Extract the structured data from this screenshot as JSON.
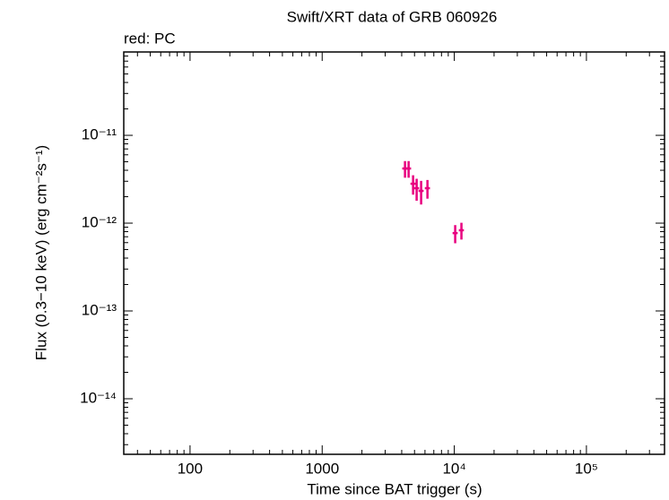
{
  "chart_data": {
    "type": "scatter",
    "title": "Swift/XRT data of GRB 060926",
    "subtitle": "red: PC",
    "x_label": "Time since BAT trigger (s)",
    "y_label": "Flux (0.3−10 keV) (erg cm⁻²s⁻¹)",
    "log_x": true,
    "log_y": true,
    "xlim": [
      31.5,
      390000
    ],
    "ylim": [
      2.33e-15,
      8.9e-11
    ],
    "xticks": [
      100,
      1000,
      {
        "value": 10000,
        "label": "10⁴"
      },
      {
        "value": 100000,
        "label": "10⁵"
      }
    ],
    "yticks": [
      {
        "value": 1e-11,
        "label": "10⁻¹¹"
      },
      {
        "value": 1e-12,
        "label": "10⁻¹²"
      },
      {
        "value": 1e-13,
        "label": "10⁻¹³"
      },
      {
        "value": 1e-14,
        "label": "10⁻¹⁴"
      }
    ],
    "series": [
      {
        "name": "PC",
        "color": "#e8007f",
        "x": [
          4236,
          4510,
          4877,
          5188,
          5610,
          6264,
          10157,
          11325
        ],
        "xerr": [
          200,
          200,
          220,
          230,
          250,
          280,
          450,
          500
        ],
        "values": [
          4.19e-12,
          4.19e-12,
          2.81e-12,
          2.5e-12,
          2.33e-12,
          2.5e-12,
          7.7e-13,
          8.3e-13
        ],
        "yerr": [
          9e-13,
          9e-13,
          7e-13,
          7e-13,
          7e-13,
          6e-13,
          1.8e-13,
          1.8e-13
        ]
      }
    ]
  }
}
